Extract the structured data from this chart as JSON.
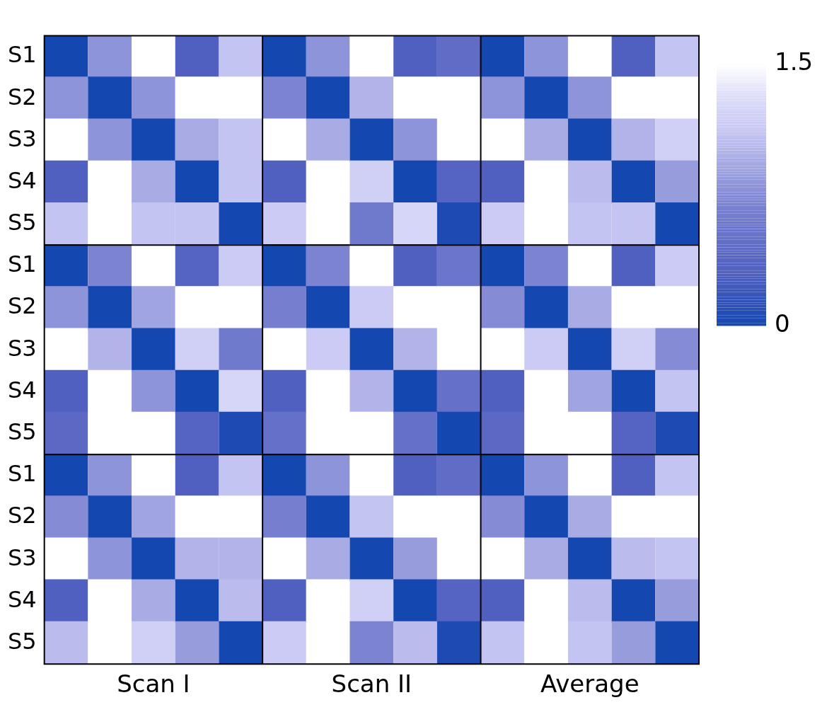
{
  "chart_data": {
    "type": "heatmap",
    "categories": [
      null,
      null,
      "Scan I",
      null,
      null,
      null,
      null,
      "Scan II",
      null,
      null,
      null,
      null,
      "Average",
      null,
      null
    ],
    "y_categories": [
      "S1",
      "S2",
      "S3",
      "S4",
      "S5",
      "S1",
      "S2",
      "S3",
      "S4",
      "S5",
      "S1",
      "S2",
      "S3",
      "S4",
      "S5"
    ],
    "clim": [
      0,
      1.5
    ],
    "cticks": [
      0,
      1.5
    ],
    "cells": [
      [
        0,
        0.8,
        1.5,
        0.3,
        1.1,
        0,
        0.8,
        1.5,
        0.3,
        0.45,
        0,
        0.8,
        1.5,
        0.3,
        1.1
      ],
      [
        0.8,
        0,
        0.8,
        1.5,
        1.5,
        0.7,
        0,
        1.0,
        1.5,
        1.5,
        0.8,
        0,
        0.8,
        1.5,
        1.5
      ],
      [
        1.5,
        0.8,
        0,
        0.95,
        1.1,
        1.5,
        0.95,
        0,
        0.8,
        1.5,
        1.5,
        0.95,
        0,
        1.0,
        1.2
      ],
      [
        0.3,
        1.5,
        0.95,
        0,
        1.1,
        0.3,
        1.5,
        1.2,
        0,
        0.35,
        0.3,
        1.5,
        1.05,
        0,
        0.85
      ],
      [
        1.1,
        1.5,
        1.1,
        1.1,
        0,
        1.15,
        1.5,
        0.6,
        1.25,
        0.05,
        1.15,
        1.5,
        1.1,
        1.1,
        0
      ],
      [
        0,
        0.7,
        1.5,
        0.35,
        1.15,
        0,
        0.7,
        1.5,
        0.3,
        0.55,
        0,
        0.7,
        1.5,
        0.3,
        1.15
      ],
      [
        0.8,
        0,
        0.9,
        1.5,
        1.5,
        0.65,
        0,
        1.15,
        1.5,
        1.5,
        0.75,
        0,
        0.95,
        1.5,
        1.5
      ],
      [
        1.5,
        1.0,
        0,
        1.2,
        0.6,
        1.5,
        1.15,
        0,
        1.0,
        1.5,
        1.5,
        1.15,
        0,
        1.2,
        0.75
      ],
      [
        0.3,
        1.5,
        0.8,
        0,
        1.25,
        0.3,
        1.5,
        1.0,
        0,
        0.5,
        0.3,
        1.5,
        0.9,
        0,
        1.1
      ],
      [
        0.4,
        1.5,
        1.5,
        0.35,
        0.05,
        0.5,
        1.5,
        1.5,
        0.5,
        0,
        0.4,
        1.5,
        1.5,
        0.35,
        0.05
      ],
      [
        0,
        0.8,
        1.5,
        0.3,
        1.1,
        0,
        0.8,
        1.5,
        0.3,
        0.45,
        0,
        0.8,
        1.5,
        0.3,
        1.1
      ],
      [
        0.75,
        0,
        0.9,
        1.5,
        1.5,
        0.65,
        0,
        1.1,
        1.5,
        1.5,
        0.75,
        0,
        0.95,
        1.5,
        1.5
      ],
      [
        1.5,
        0.8,
        0,
        1.0,
        1.0,
        1.5,
        0.95,
        0,
        0.85,
        1.5,
        1.5,
        0.95,
        0,
        1.05,
        1.1
      ],
      [
        0.3,
        1.5,
        0.95,
        0,
        1.05,
        0.3,
        1.5,
        1.2,
        0,
        0.35,
        0.3,
        1.5,
        1.05,
        0,
        0.85
      ],
      [
        1.05,
        1.5,
        1.2,
        0.85,
        0,
        1.15,
        1.5,
        0.7,
        1.05,
        0.05,
        1.1,
        1.5,
        1.1,
        0.85,
        0
      ]
    ]
  }
}
